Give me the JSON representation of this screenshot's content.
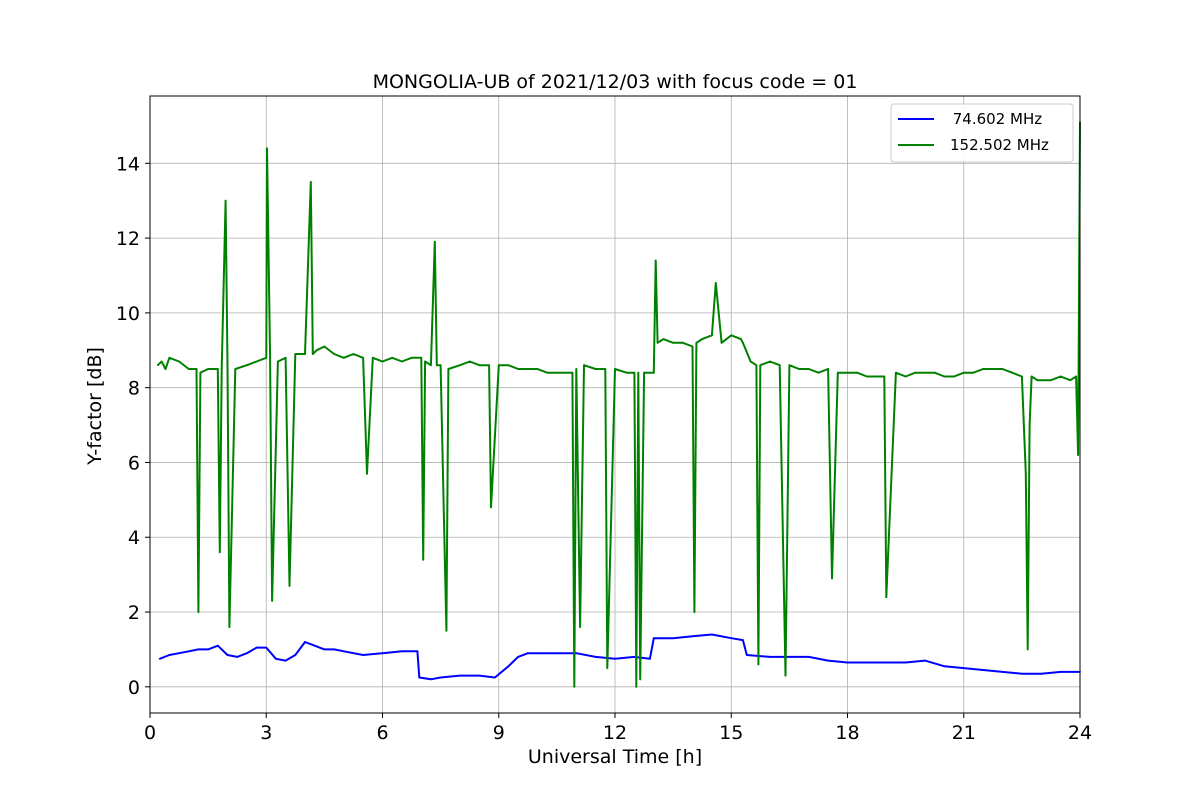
{
  "chart_data": {
    "type": "line",
    "title": "MONGOLIA-UB of 2021/12/03 with focus code = 01",
    "xlabel": "Universal Time [h]",
    "ylabel": "Y-factor [dB]",
    "xlim": [
      0,
      24
    ],
    "ylim": [
      -0.7,
      15.8
    ],
    "xticks": [
      0,
      3,
      6,
      9,
      12,
      15,
      18,
      21,
      24
    ],
    "yticks": [
      0,
      2,
      4,
      6,
      8,
      10,
      12,
      14
    ],
    "grid": true,
    "legend_position": "top-right",
    "series": [
      {
        "name": " 74.602 MHz",
        "color": "#0000ff",
        "x": [
          0.25,
          0.5,
          0.75,
          1.0,
          1.25,
          1.5,
          1.75,
          2.0,
          2.25,
          2.5,
          2.75,
          3.0,
          3.25,
          3.5,
          3.75,
          4.0,
          4.25,
          4.5,
          4.75,
          5.0,
          5.5,
          6.0,
          6.5,
          6.9,
          6.95,
          7.25,
          7.5,
          8.0,
          8.5,
          8.9,
          9.25,
          9.5,
          9.75,
          10.0,
          10.5,
          11.0,
          11.5,
          12.0,
          12.5,
          12.9,
          13.0,
          13.25,
          13.5,
          14.0,
          14.5,
          15.0,
          15.3,
          15.4,
          16.0,
          16.5,
          17.0,
          17.5,
          18.0,
          18.5,
          19.0,
          19.5,
          20.0,
          20.5,
          21.0,
          21.5,
          22.0,
          22.5,
          23.0,
          23.5,
          24.0
        ],
        "y": [
          0.75,
          0.85,
          0.9,
          0.95,
          1.0,
          1.0,
          1.1,
          0.85,
          0.8,
          0.9,
          1.05,
          1.05,
          0.75,
          0.7,
          0.85,
          1.2,
          1.1,
          1.0,
          1.0,
          0.95,
          0.85,
          0.9,
          0.95,
          0.95,
          0.25,
          0.2,
          0.25,
          0.3,
          0.3,
          0.25,
          0.55,
          0.8,
          0.9,
          0.9,
          0.9,
          0.9,
          0.8,
          0.75,
          0.8,
          0.75,
          1.3,
          1.3,
          1.3,
          1.35,
          1.4,
          1.3,
          1.25,
          0.85,
          0.8,
          0.8,
          0.8,
          0.7,
          0.65,
          0.65,
          0.65,
          0.65,
          0.7,
          0.55,
          0.5,
          0.45,
          0.4,
          0.35,
          0.35,
          0.4,
          0.4
        ]
      },
      {
        "name": "152.502 MHz",
        "color": "#008000",
        "x": [
          0.2,
          0.3,
          0.4,
          0.5,
          0.75,
          1.0,
          1.2,
          1.25,
          1.3,
          1.5,
          1.75,
          1.8,
          1.85,
          1.95,
          2.0,
          2.05,
          2.2,
          2.5,
          2.75,
          3.0,
          3.02,
          3.1,
          3.15,
          3.3,
          3.5,
          3.6,
          3.75,
          4.0,
          4.15,
          4.2,
          4.3,
          4.5,
          4.75,
          5.0,
          5.25,
          5.5,
          5.6,
          5.75,
          6.0,
          6.25,
          6.5,
          6.75,
          7.0,
          7.05,
          7.1,
          7.25,
          7.35,
          7.4,
          7.5,
          7.65,
          7.7,
          8.0,
          8.25,
          8.5,
          8.75,
          8.8,
          9.0,
          9.25,
          9.5,
          9.75,
          10.0,
          10.25,
          10.5,
          10.75,
          10.9,
          10.95,
          11.0,
          11.1,
          11.2,
          11.5,
          11.75,
          11.8,
          12.0,
          12.3,
          12.5,
          12.55,
          12.6,
          12.65,
          12.75,
          13.0,
          13.05,
          13.1,
          13.25,
          13.5,
          13.75,
          14.0,
          14.05,
          14.1,
          14.25,
          14.5,
          14.6,
          14.75,
          15.0,
          15.25,
          15.3,
          15.5,
          15.65,
          15.7,
          15.75,
          16.0,
          16.25,
          16.4,
          16.5,
          16.75,
          17.0,
          17.25,
          17.5,
          17.6,
          17.75,
          18.0,
          18.25,
          18.5,
          18.75,
          18.95,
          19.0,
          19.25,
          19.5,
          19.75,
          20.0,
          20.25,
          20.5,
          20.75,
          21.0,
          21.25,
          21.5,
          21.75,
          22.0,
          22.25,
          22.5,
          22.6,
          22.65,
          22.7,
          22.75,
          22.9,
          23.0,
          23.25,
          23.5,
          23.75,
          23.9,
          23.95,
          24.0
        ],
        "y": [
          8.6,
          8.7,
          8.5,
          8.8,
          8.7,
          8.5,
          8.5,
          2.0,
          8.4,
          8.5,
          8.5,
          3.6,
          8.5,
          13.0,
          8.6,
          1.6,
          8.5,
          8.6,
          8.7,
          8.8,
          14.4,
          8.8,
          2.3,
          8.7,
          8.8,
          2.7,
          8.9,
          8.9,
          13.5,
          8.9,
          9.0,
          9.1,
          8.9,
          8.8,
          8.9,
          8.8,
          5.7,
          8.8,
          8.7,
          8.8,
          8.7,
          8.8,
          8.8,
          3.4,
          8.7,
          8.6,
          11.9,
          8.6,
          8.6,
          1.5,
          8.5,
          8.6,
          8.7,
          8.6,
          8.6,
          4.8,
          8.6,
          8.6,
          8.5,
          8.5,
          8.5,
          8.4,
          8.4,
          8.4,
          8.4,
          0.0,
          8.5,
          1.6,
          8.6,
          8.5,
          8.5,
          0.5,
          8.5,
          8.4,
          8.4,
          0.0,
          8.4,
          0.2,
          8.4,
          8.4,
          11.4,
          9.2,
          9.3,
          9.2,
          9.2,
          9.1,
          2.0,
          9.2,
          9.3,
          9.4,
          10.8,
          9.2,
          9.4,
          9.3,
          9.2,
          8.7,
          8.6,
          0.6,
          8.6,
          8.7,
          8.6,
          0.3,
          8.6,
          8.5,
          8.5,
          8.4,
          8.5,
          2.9,
          8.4,
          8.4,
          8.4,
          8.3,
          8.3,
          8.3,
          2.4,
          8.4,
          8.3,
          8.4,
          8.4,
          8.4,
          8.3,
          8.3,
          8.4,
          8.4,
          8.5,
          8.5,
          8.5,
          8.4,
          8.3,
          5.7,
          1.0,
          7.0,
          8.3,
          8.2,
          8.2,
          8.2,
          8.3,
          8.2,
          8.3,
          6.2,
          15.1
        ]
      }
    ]
  }
}
